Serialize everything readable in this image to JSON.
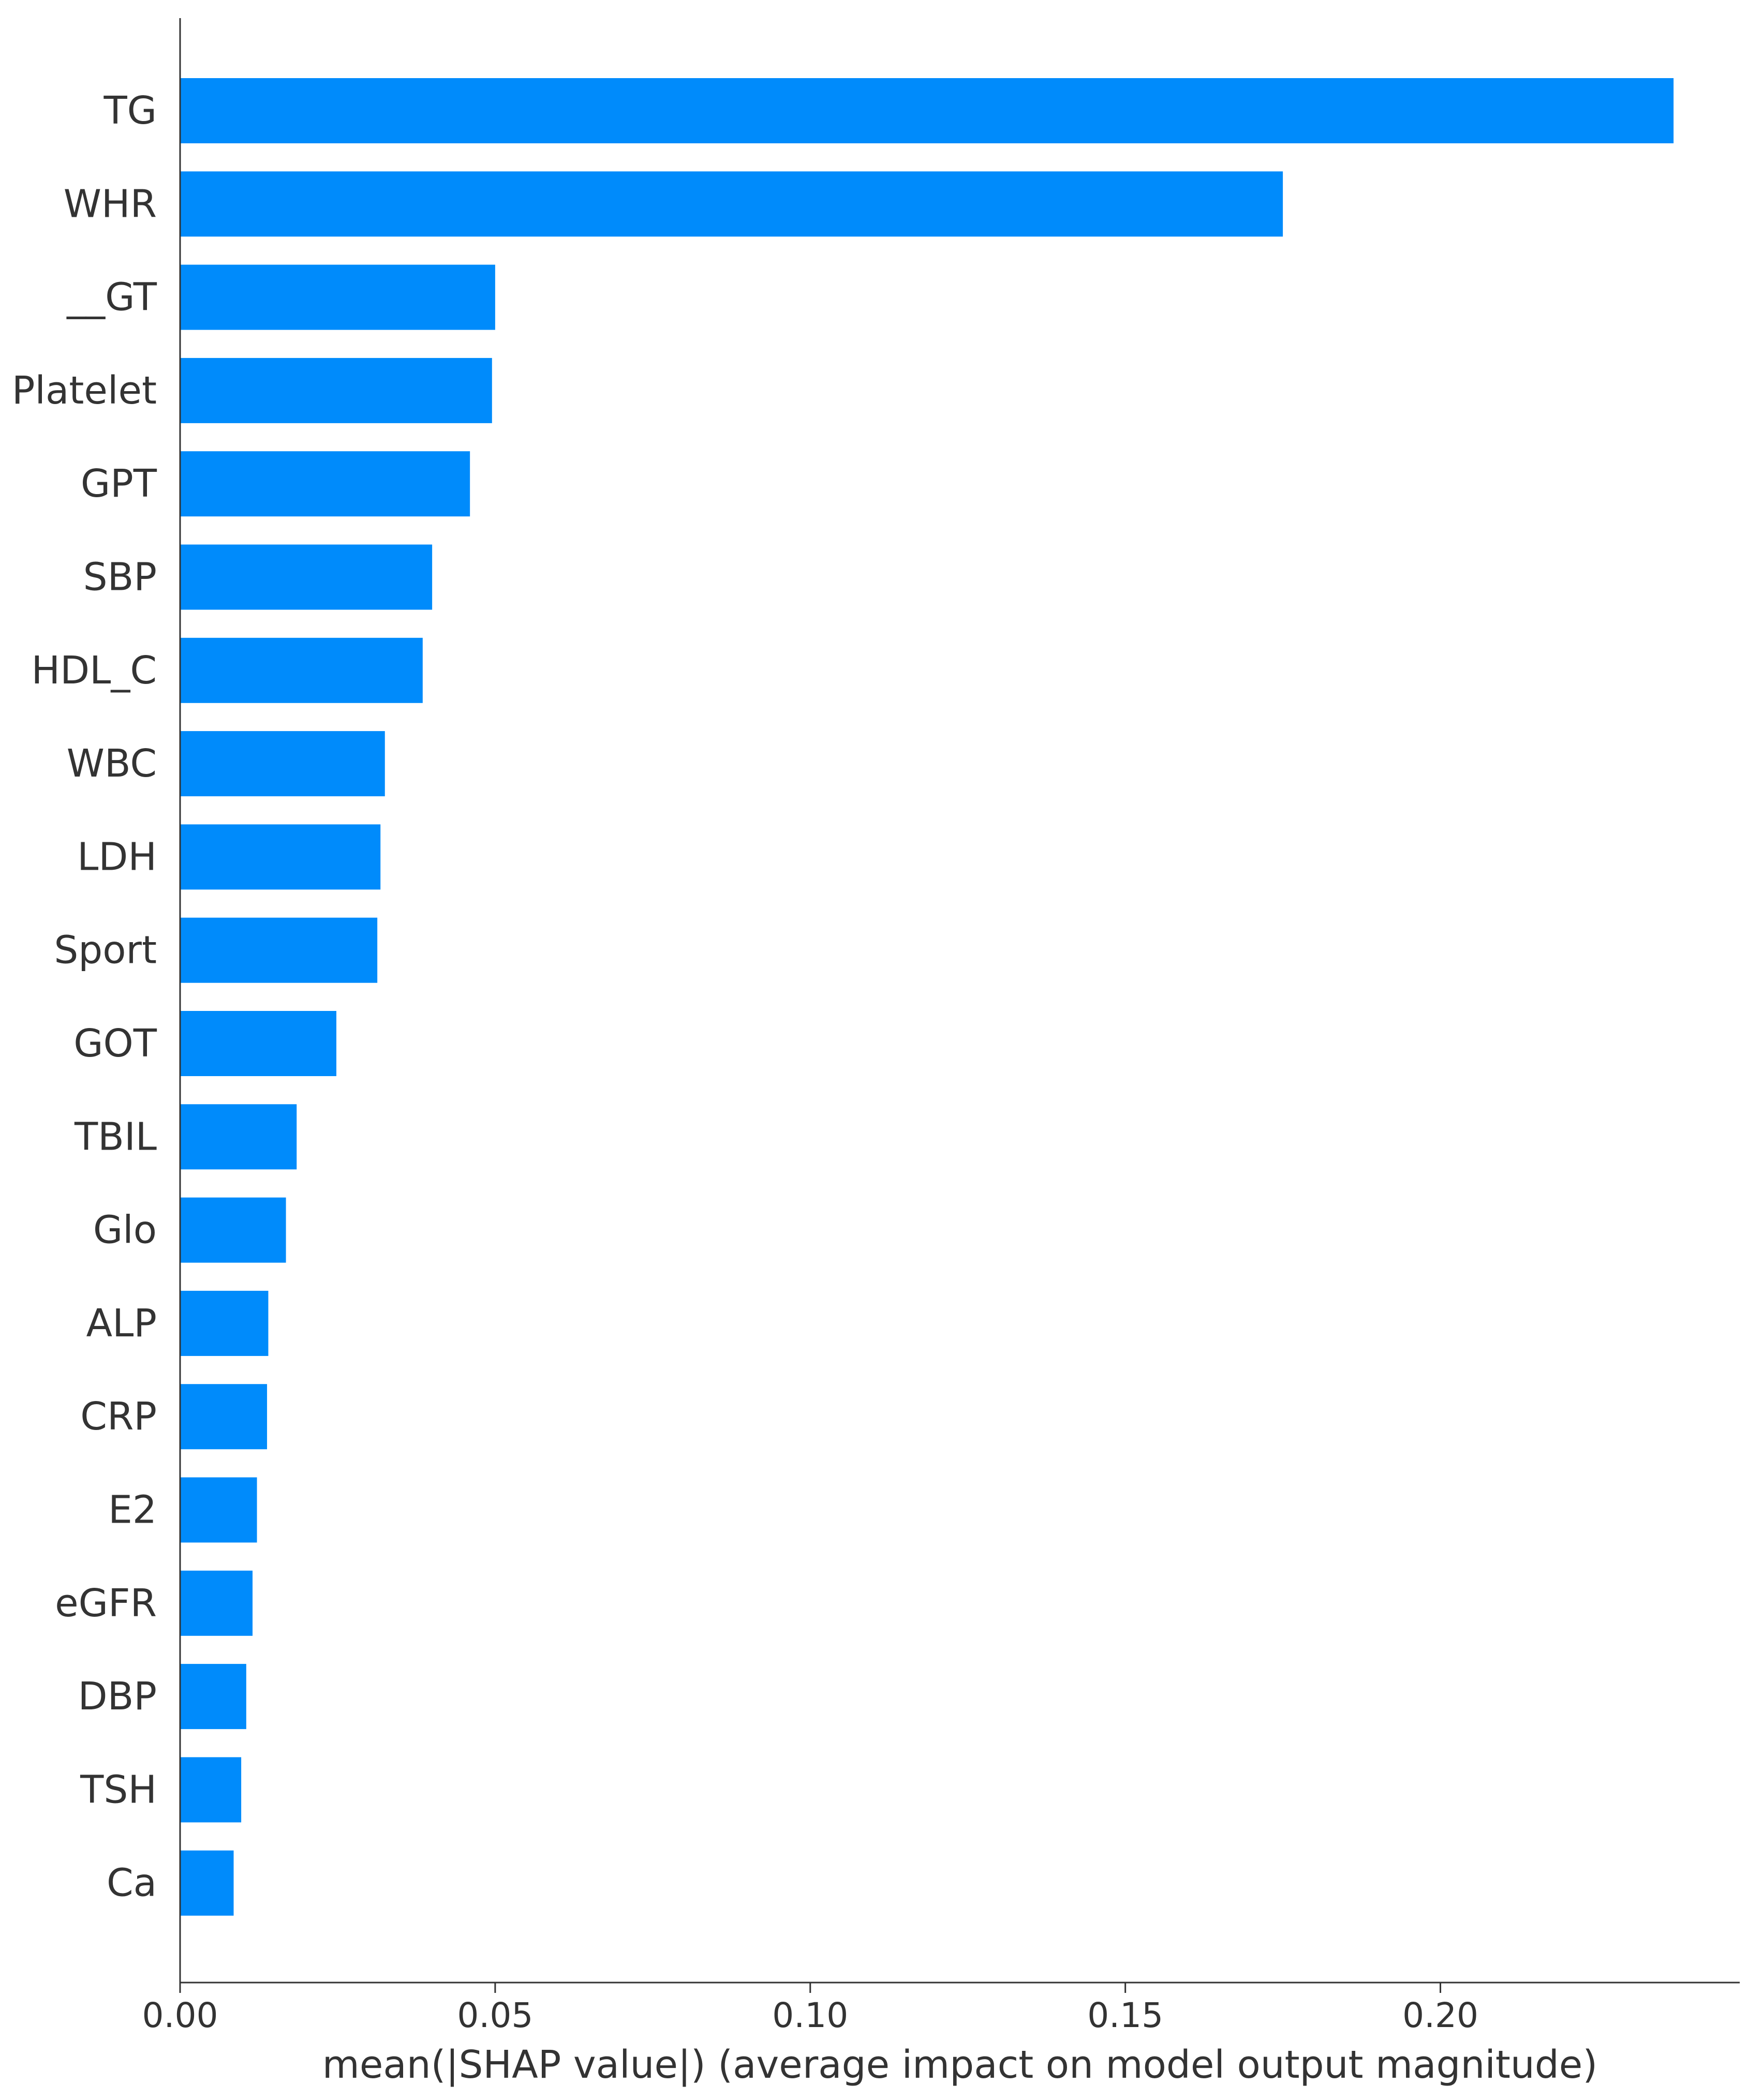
{
  "chart_data": {
    "type": "bar",
    "orientation": "horizontal",
    "categories": [
      "TG",
      "WHR",
      "__GT",
      "Platelet",
      "GPT",
      "SBP",
      "HDL_C",
      "WBC",
      "LDH",
      "Sport",
      "GOT",
      "TBIL",
      "Glo",
      "ALP",
      "CRP",
      "E2",
      "eGFR",
      "DBP",
      "TSH",
      "Ca"
    ],
    "values": [
      0.237,
      0.175,
      0.05,
      0.0495,
      0.046,
      0.04,
      0.0385,
      0.0325,
      0.0318,
      0.0313,
      0.0248,
      0.0185,
      0.0168,
      0.014,
      0.0138,
      0.0122,
      0.0115,
      0.0105,
      0.0097,
      0.0085
    ],
    "title": "",
    "xlabel": "mean(|SHAP value|) (average impact on model output magnitude)",
    "ylabel": "",
    "xlim": [
      0,
      0.2475
    ],
    "xticks": [
      0,
      0.05,
      0.1,
      0.15,
      0.2
    ],
    "xtick_labels": [
      "0.00",
      "0.05",
      "0.10",
      "0.15",
      "0.20"
    ],
    "grid": false,
    "colors": {
      "bar": "#008bfb",
      "axis": "#333333",
      "text": "#333333"
    }
  }
}
